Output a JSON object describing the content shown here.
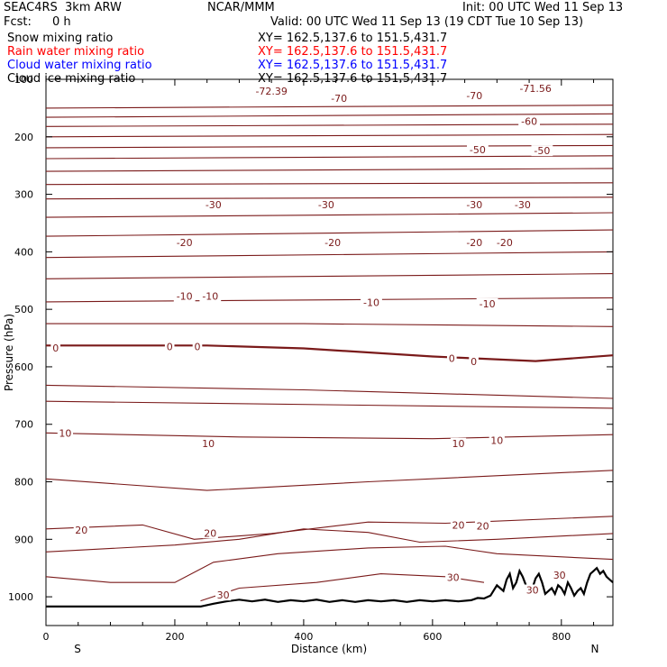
{
  "header": {
    "title": "SEAC4RS  3km ARW",
    "center": "NCAR/MMM",
    "init": "Init: 00 UTC Wed 11 Sep 13",
    "fcst_label": "Fcst:",
    "fcst_value": "0 h",
    "valid": "Valid: 00 UTC Wed 11 Sep 13 (19 CDT Tue 10 Sep 13)"
  },
  "legend": [
    {
      "name": "Snow mixing ratio",
      "xy": "XY= 162.5,137.6 to 151.5,431.7",
      "color": "#000000"
    },
    {
      "name": "Rain water mixing ratio",
      "xy": "XY= 162.5,137.6 to 151.5,431.7",
      "color": "#ff0000"
    },
    {
      "name": "Cloud water mixing ratio",
      "xy": "XY= 162.5,137.6 to 151.5,431.7",
      "color": "#0000ff"
    },
    {
      "name": "Cloud ice mixing ratio",
      "xy": "XY= 162.5,137.6 to 151.5,431.7",
      "color": "#000000"
    }
  ],
  "chart_data": {
    "type": "line",
    "xlabel": "Distance (km)",
    "ylabel": "Pressure (hPa)",
    "xlim": [
      0,
      880
    ],
    "ylim": [
      1050,
      100
    ],
    "xticks": [
      0,
      200,
      400,
      600,
      800
    ],
    "xtick_labels": [
      "0",
      "200",
      "400",
      "600",
      "800"
    ],
    "yticks": [
      100,
      200,
      300,
      400,
      500,
      600,
      700,
      800,
      900,
      1000
    ],
    "ytick_labels": [
      "100",
      "200",
      "300",
      "400",
      "500",
      "600",
      "700",
      "800",
      "900",
      "1000"
    ],
    "direction_labels": {
      "left": "S",
      "right": "N"
    },
    "contour_color": "#7a1a1a",
    "terrain_color": "#000000",
    "contours": [
      {
        "x": [
          0,
          880
        ],
        "p": [
          150,
          145
        ]
      },
      {
        "x": [
          0,
          880
        ],
        "p": [
          166,
          160
        ]
      },
      {
        "x": [
          0,
          880
        ],
        "p": [
          182,
          178
        ]
      },
      {
        "x": [
          0,
          880
        ],
        "p": [
          200,
          196
        ]
      },
      {
        "x": [
          0,
          880
        ],
        "p": [
          219,
          215
        ]
      },
      {
        "x": [
          0,
          880
        ],
        "p": [
          238,
          233
        ]
      },
      {
        "x": [
          0,
          880
        ],
        "p": [
          260,
          255
        ]
      },
      {
        "x": [
          0,
          880
        ],
        "p": [
          283,
          280
        ]
      },
      {
        "x": [
          0,
          880
        ],
        "p": [
          308,
          305
        ]
      },
      {
        "x": [
          0,
          880
        ],
        "p": [
          340,
          332
        ]
      },
      {
        "x": [
          0,
          880
        ],
        "p": [
          373,
          362
        ]
      },
      {
        "x": [
          0,
          880
        ],
        "p": [
          410,
          400
        ]
      },
      {
        "x": [
          0,
          880
        ],
        "p": [
          447,
          438
        ]
      },
      {
        "x": [
          0,
          880
        ],
        "p": [
          487,
          480
        ]
      },
      {
        "x": [
          0,
          400,
          880
        ],
        "p": [
          525,
          525,
          530
        ]
      },
      {
        "x": [
          0,
          250,
          400,
          600,
          760,
          880
        ],
        "p": [
          563,
          563,
          568,
          582,
          590,
          580
        ],
        "bold": true
      },
      {
        "x": [
          0,
          400,
          880
        ],
        "p": [
          632,
          640,
          655
        ]
      },
      {
        "x": [
          0,
          880
        ],
        "p": [
          660,
          672
        ]
      },
      {
        "x": [
          0,
          300,
          600,
          880
        ],
        "p": [
          715,
          722,
          725,
          718
        ]
      },
      {
        "x": [
          0,
          250,
          500,
          880
        ],
        "p": [
          795,
          815,
          800,
          780
        ]
      },
      {
        "x": [
          0,
          150,
          230,
          350,
          500,
          620,
          880
        ],
        "p": [
          882,
          875,
          900,
          890,
          870,
          872,
          860
        ]
      },
      {
        "x": [
          0,
          200,
          300,
          400,
          500,
          580,
          700,
          880
        ],
        "p": [
          922,
          910,
          900,
          882,
          888,
          905,
          900,
          890
        ]
      },
      {
        "x": [
          0,
          100,
          200,
          260,
          360,
          500,
          620,
          700,
          880
        ],
        "p": [
          965,
          975,
          975,
          940,
          925,
          915,
          912,
          925,
          935
        ]
      },
      {
        "x": [
          240,
          300,
          420,
          520,
          620,
          680
        ],
        "p": [
          1007,
          985,
          975,
          960,
          965,
          975
        ]
      }
    ],
    "contour_labels": [
      {
        "text": "-72.39",
        "x": 350,
        "p": 120
      },
      {
        "text": "-70",
        "x": 455,
        "p": 133
      },
      {
        "text": "-70",
        "x": 665,
        "p": 128
      },
      {
        "text": "-71.56",
        "x": 760,
        "p": 116
      },
      {
        "text": "-60",
        "x": 750,
        "p": 173
      },
      {
        "text": "-50",
        "x": 670,
        "p": 222
      },
      {
        "text": "-50",
        "x": 770,
        "p": 224
      },
      {
        "text": "-30",
        "x": 260,
        "p": 318
      },
      {
        "text": "-30",
        "x": 435,
        "p": 318
      },
      {
        "text": "-30",
        "x": 665,
        "p": 318
      },
      {
        "text": "-30",
        "x": 740,
        "p": 318
      },
      {
        "text": "-20",
        "x": 215,
        "p": 384
      },
      {
        "text": "-20",
        "x": 445,
        "p": 384
      },
      {
        "text": "-20",
        "x": 665,
        "p": 384
      },
      {
        "text": "-20",
        "x": 712,
        "p": 384
      },
      {
        "text": "-10",
        "x": 215,
        "p": 477
      },
      {
        "text": "-10",
        "x": 255,
        "p": 477
      },
      {
        "text": "-10",
        "x": 505,
        "p": 488
      },
      {
        "text": "-10",
        "x": 685,
        "p": 490
      },
      {
        "text": "0",
        "x": 15,
        "p": 567
      },
      {
        "text": "0",
        "x": 192,
        "p": 565
      },
      {
        "text": "0",
        "x": 235,
        "p": 565
      },
      {
        "text": "0",
        "x": 630,
        "p": 585
      },
      {
        "text": "0",
        "x": 664,
        "p": 591
      },
      {
        "text": "10",
        "x": 30,
        "p": 715
      },
      {
        "text": "10",
        "x": 252,
        "p": 733
      },
      {
        "text": "10",
        "x": 640,
        "p": 733
      },
      {
        "text": "10",
        "x": 700,
        "p": 728
      },
      {
        "text": "20",
        "x": 55,
        "p": 884
      },
      {
        "text": "20",
        "x": 255,
        "p": 889
      },
      {
        "text": "20",
        "x": 640,
        "p": 875
      },
      {
        "text": "20",
        "x": 678,
        "p": 877
      },
      {
        "text": "30",
        "x": 275,
        "p": 997
      },
      {
        "text": "30",
        "x": 632,
        "p": 966
      },
      {
        "text": "30",
        "x": 755,
        "p": 988
      },
      {
        "text": "30",
        "x": 797,
        "p": 962
      }
    ],
    "terrain": {
      "x": [
        0,
        240,
        260,
        280,
        300,
        320,
        340,
        360,
        380,
        400,
        420,
        440,
        460,
        480,
        500,
        520,
        540,
        560,
        580,
        600,
        620,
        640,
        660,
        670,
        680,
        690,
        700,
        705,
        710,
        715,
        720,
        725,
        730,
        735,
        740,
        745,
        750,
        755,
        760,
        765,
        770,
        775,
        780,
        785,
        790,
        795,
        800,
        805,
        810,
        815,
        820,
        825,
        830,
        835,
        840,
        845,
        850,
        855,
        860,
        865,
        870,
        875,
        880
      ],
      "p": [
        1017,
        1017,
        1012,
        1008,
        1005,
        1008,
        1005,
        1009,
        1006,
        1008,
        1005,
        1009,
        1006,
        1009,
        1006,
        1008,
        1006,
        1009,
        1006,
        1008,
        1006,
        1008,
        1006,
        1002,
        1003,
        998,
        980,
        985,
        990,
        970,
        960,
        985,
        975,
        955,
        965,
        980,
        990,
        985,
        968,
        960,
        975,
        995,
        990,
        985,
        995,
        980,
        985,
        995,
        975,
        985,
        998,
        990,
        985,
        995,
        975,
        960,
        955,
        950,
        960,
        955,
        965,
        970,
        975
      ]
    }
  }
}
